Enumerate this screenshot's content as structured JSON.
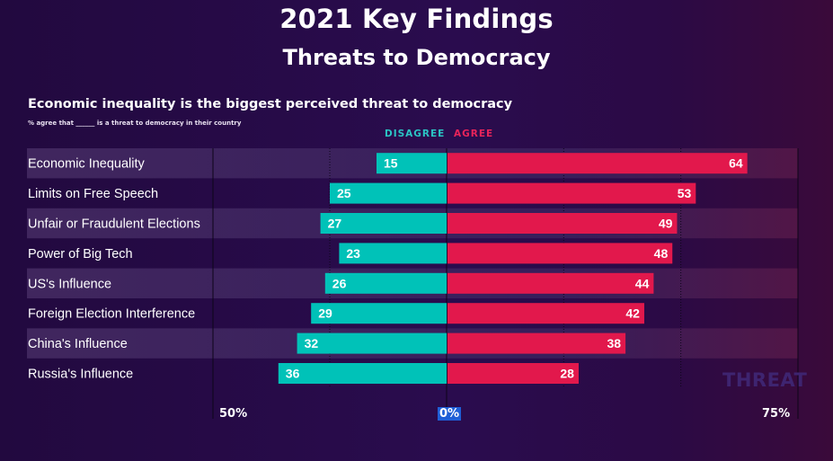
{
  "header": {
    "title": "2021 Key Findings",
    "subtitle": "Threats to Democracy"
  },
  "chart_data": {
    "type": "bar",
    "title": "Economic inequality is the biggest perceived threat to democracy",
    "subtitle": "% agree that ______ is a threat to democracy in their country",
    "orientation": "horizontal-diverging",
    "categories": [
      "Economic Inequality",
      "Limits on Free Speech",
      "Unfair or Fraudulent Elections",
      "Power of Big Tech",
      "US's Influence",
      "Foreign Election Interference",
      "China's Influence",
      "Russia's Influence"
    ],
    "series": [
      {
        "name": "DISAGREE",
        "color": "#00c2b8",
        "values": [
          15,
          25,
          27,
          23,
          26,
          29,
          32,
          36
        ]
      },
      {
        "name": "AGREE",
        "color": "#e2184c",
        "values": [
          64,
          53,
          49,
          48,
          44,
          42,
          38,
          28
        ]
      }
    ],
    "x_tick_labels": {
      "left": "50%",
      "center": "0%",
      "right": "75%"
    },
    "xlim_disagree": [
      0,
      50
    ],
    "xlim_agree": [
      0,
      75
    ],
    "watermark": "THREAT",
    "grid": true,
    "legend_placement": "top-center"
  }
}
